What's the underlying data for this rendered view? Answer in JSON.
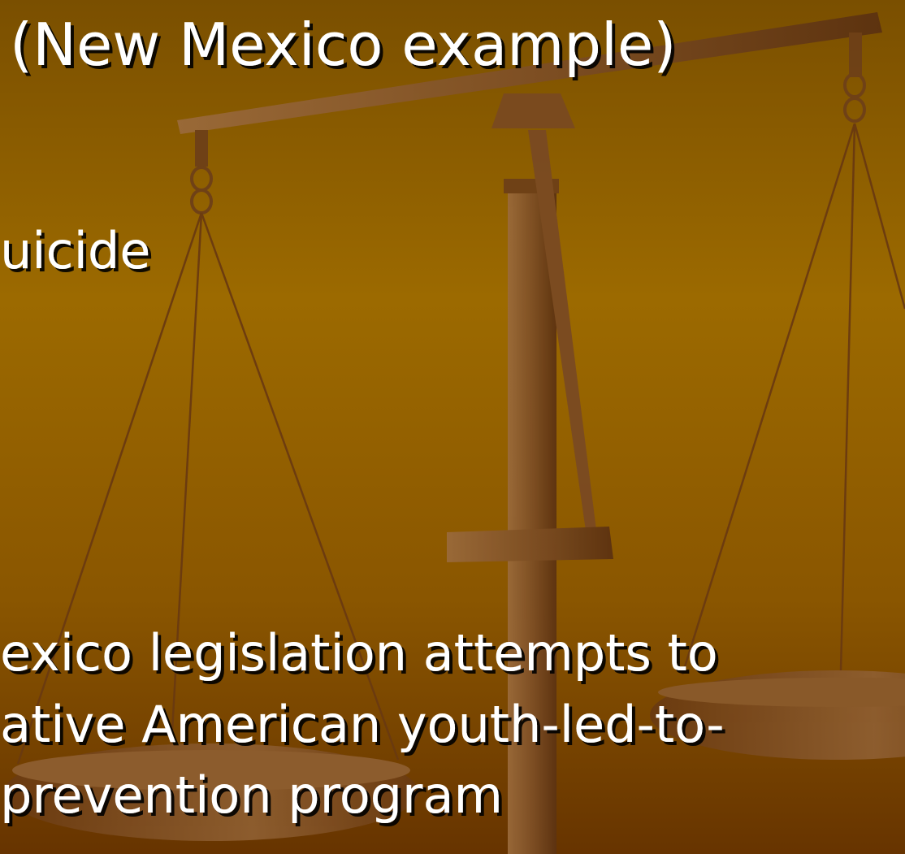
{
  "title": "(New Mexico example)",
  "lines": [
    "uicide",
    "exico legislation attempts to",
    "ative American youth-led-to-",
    "prevention program"
  ]
}
